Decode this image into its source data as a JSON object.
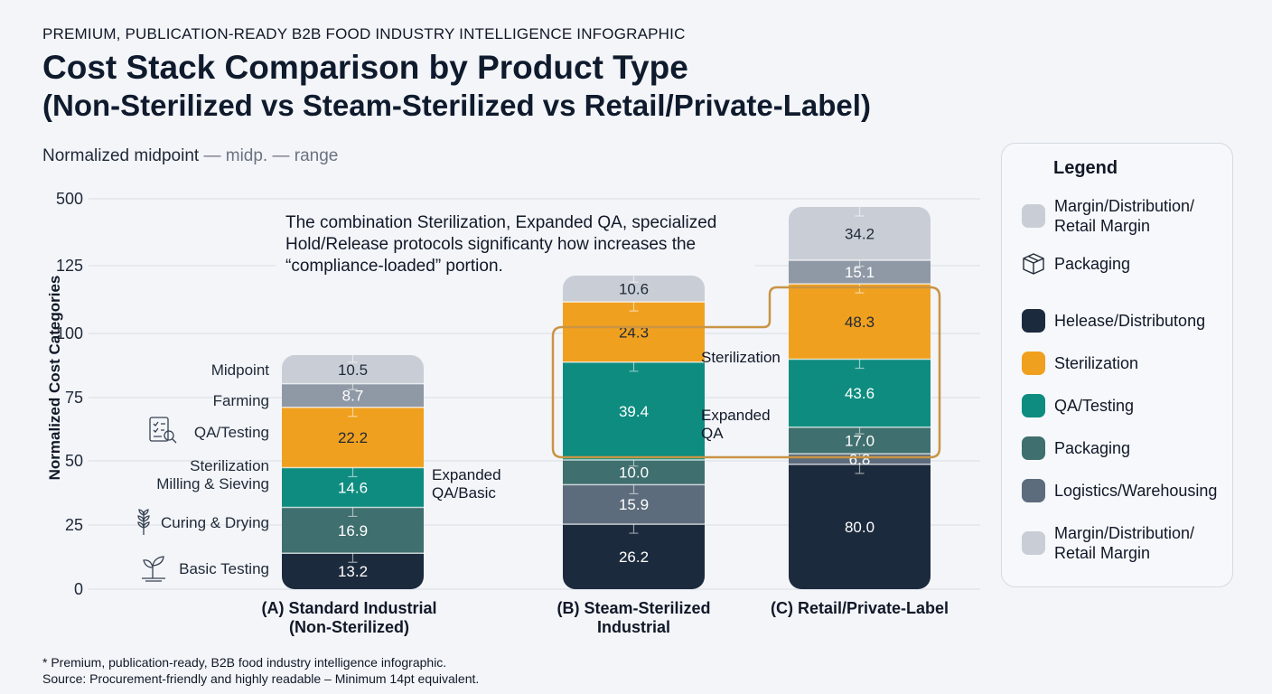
{
  "header": {
    "eyebrow": "PREMIUM, PUBLICATION-READY B2B FOOD INDUSTRY INTELLIGENCE INFOGRAPHIC",
    "title": "Cost Stack Comparison by Product Type",
    "subtitle": "(Non-Sterilized vs Steam-Sterilized vs Retail/Private-Label)",
    "note_main": "Normalized midpoint",
    "note_muted": " — midp. — range"
  },
  "colors": {
    "margin": "#c9ced6",
    "distribution": "#8f99a6",
    "sterilization": "#f0a01f",
    "qa": "#0e8c80",
    "packaging": "#3f6f6e",
    "logistics": "#5d6c7c",
    "release": "#1c2a3d",
    "highlight": "#c99444"
  },
  "chart_data": {
    "type": "bar",
    "stacked": true,
    "ylabel": "Normalized Cost Categories",
    "yticks": [
      "0",
      "25",
      "50",
      "75",
      "100",
      "125",
      "500"
    ],
    "callout": "The combination Sterilization, Expanded QA, specialized Hold/Release protocols significanty how increases the “compliance-loaded” portion.",
    "bars": [
      {
        "name": "(A) Standard Industrial (Non-Sterilized)",
        "label_lines": [
          "(A) Standard Industrial",
          "(Non-Sterilized)"
        ],
        "segments": [
          {
            "value": 13.2,
            "label": "13.2",
            "color": "release"
          },
          {
            "value": 16.9,
            "label": "16.9",
            "color": "packaging"
          },
          {
            "value": 14.6,
            "label": "14.6",
            "color": "qa"
          },
          {
            "value": 22.2,
            "label": "22.2",
            "color": "sterilization"
          },
          {
            "value": 8.7,
            "label": "8.7",
            "color": "distribution"
          },
          {
            "value": 10.5,
            "label": "10.5",
            "color": "margin"
          }
        ]
      },
      {
        "name": "(B) Steam-Sterilized Industrial",
        "label_lines": [
          "(B) Steam-Sterilized",
          "Industrial"
        ],
        "segments": [
          {
            "value": 26.2,
            "label": "26.2",
            "color": "release"
          },
          {
            "value": 15.9,
            "label": "15.9",
            "color": "logistics"
          },
          {
            "value": 10.0,
            "label": "10.0",
            "color": "packaging"
          },
          {
            "value": 39.4,
            "label": "39.4",
            "color": "qa"
          },
          {
            "value": 24.3,
            "label": "24.3",
            "color": "sterilization"
          },
          {
            "value": 10.6,
            "label": "10.6",
            "color": "margin"
          }
        ]
      },
      {
        "name": "(C) Retail/Private-Label",
        "label_lines": [
          "(C) Retail/Private-Label"
        ],
        "segments": [
          {
            "value": 80.0,
            "label": "80.0",
            "color": "release"
          },
          {
            "value": 6.8,
            "label": "6.8",
            "color": "logistics"
          },
          {
            "value": 17.0,
            "label": "17.0",
            "color": "packaging"
          },
          {
            "value": 43.6,
            "label": "43.6",
            "color": "qa"
          },
          {
            "value": 48.3,
            "label": "48.3",
            "color": "sterilization"
          },
          {
            "value": 15.1,
            "label": "15.1",
            "color": "distribution"
          },
          {
            "value": 34.2,
            "label": "34.2",
            "color": "margin"
          }
        ]
      }
    ],
    "left_labels": [
      {
        "text": [
          "Midpoint"
        ],
        "icon": null
      },
      {
        "text": [
          "Farming"
        ],
        "icon": null
      },
      {
        "text": [
          "QA/Testing"
        ],
        "icon": "checklist-magnifier-icon"
      },
      {
        "text": [
          "Sterilization",
          "Milling & Sieving"
        ],
        "icon": null
      },
      {
        "text": [
          "Curing & Drying"
        ],
        "icon": "wheat-icon"
      },
      {
        "text": [
          "Basic Testing"
        ],
        "icon": "sprout-icon"
      }
    ],
    "side_labels": [
      {
        "text": [
          "Expanded",
          "QA/Basic"
        ]
      },
      {
        "text": [
          "Sterilization"
        ]
      },
      {
        "text": [
          "Expanded",
          "QA"
        ]
      }
    ]
  },
  "legend": {
    "title": "Legend",
    "items": [
      {
        "label": "Margin/Distribution/ Retail Margin",
        "color": "margin",
        "icon": null
      },
      {
        "label": "Packaging",
        "color": null,
        "icon": "box-icon"
      },
      {
        "label": "Helease/Distributong",
        "color": "release",
        "icon": null
      },
      {
        "label": "Sterilization",
        "color": "sterilization",
        "icon": null
      },
      {
        "label": "QA/Testing",
        "color": "qa",
        "icon": null
      },
      {
        "label": "Packaging",
        "color": "packaging",
        "icon": null
      },
      {
        "label": "Logistics/Warehousing",
        "color": "logistics",
        "icon": null
      },
      {
        "label": "Margin/Distribution/ Retail Margin",
        "color": "margin",
        "icon": null
      }
    ]
  },
  "footer": {
    "line1": "* Premium, publication-ready, B2B food industry intelligence infographic.",
    "line2": "Source: Procurement-friendly and highly readable – Minimum 14pt equivalent."
  }
}
